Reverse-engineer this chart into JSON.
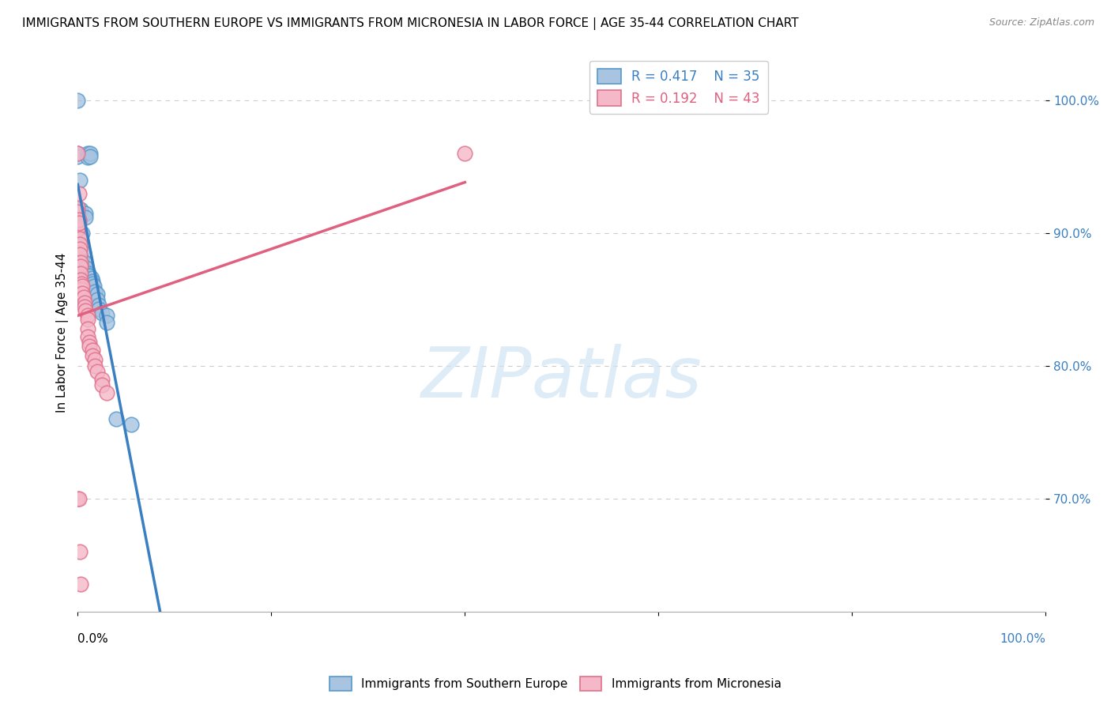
{
  "title": "IMMIGRANTS FROM SOUTHERN EUROPE VS IMMIGRANTS FROM MICRONESIA IN LABOR FORCE | AGE 35-44 CORRELATION CHART",
  "source": "Source: ZipAtlas.com",
  "ylabel": "In Labor Force | Age 35-44",
  "xlim": [
    0.0,
    1.0
  ],
  "ylim": [
    0.615,
    1.035
  ],
  "yticks": [
    0.7,
    0.8,
    0.9,
    1.0
  ],
  "ytick_labels": [
    "70.0%",
    "80.0%",
    "90.0%",
    "100.0%"
  ],
  "xtick_labels_left": "0.0%",
  "xtick_labels_right": "100.0%",
  "legend_blue_R": "R = 0.417",
  "legend_blue_N": "N = 35",
  "legend_pink_R": "R = 0.192",
  "legend_pink_N": "N = 43",
  "blue_fill": "#a8c4e0",
  "pink_fill": "#f4b8c8",
  "blue_edge": "#5599cc",
  "pink_edge": "#e0708a",
  "blue_line": "#3a7fc1",
  "pink_line": "#e06080",
  "watermark_color": "#d0e4f4",
  "grid_color": "#cccccc",
  "background": "#ffffff",
  "title_fontsize": 11,
  "source_fontsize": 9,
  "tick_fontsize": 11,
  "legend_fontsize": 12,
  "ylabel_fontsize": 11,
  "blue_scatter": [
    [
      0.0,
      1.0
    ],
    [
      0.0,
      0.96
    ],
    [
      0.0,
      0.958
    ],
    [
      0.01,
      0.96
    ],
    [
      0.01,
      0.957
    ],
    [
      0.013,
      0.96
    ],
    [
      0.013,
      0.958
    ],
    [
      0.002,
      0.94
    ],
    [
      0.003,
      0.918
    ],
    [
      0.008,
      0.915
    ],
    [
      0.008,
      0.912
    ],
    [
      0.005,
      0.9
    ],
    [
      0.006,
      0.885
    ],
    [
      0.004,
      0.88
    ],
    [
      0.007,
      0.878
    ],
    [
      0.007,
      0.872
    ],
    [
      0.009,
      0.874
    ],
    [
      0.009,
      0.87
    ],
    [
      0.011,
      0.87
    ],
    [
      0.011,
      0.868
    ],
    [
      0.012,
      0.868
    ],
    [
      0.014,
      0.866
    ],
    [
      0.015,
      0.864
    ],
    [
      0.015,
      0.862
    ],
    [
      0.017,
      0.86
    ],
    [
      0.018,
      0.856
    ],
    [
      0.02,
      0.854
    ],
    [
      0.02,
      0.85
    ],
    [
      0.022,
      0.846
    ],
    [
      0.022,
      0.843
    ],
    [
      0.025,
      0.84
    ],
    [
      0.03,
      0.838
    ],
    [
      0.03,
      0.833
    ],
    [
      0.04,
      0.76
    ],
    [
      0.055,
      0.756
    ]
  ],
  "pink_scatter": [
    [
      0.0,
      0.96
    ],
    [
      0.0,
      0.92
    ],
    [
      0.0,
      0.916
    ],
    [
      0.0,
      0.905
    ],
    [
      0.0,
      0.903
    ],
    [
      0.001,
      0.93
    ],
    [
      0.001,
      0.91
    ],
    [
      0.001,
      0.908
    ],
    [
      0.002,
      0.896
    ],
    [
      0.002,
      0.892
    ],
    [
      0.002,
      0.888
    ],
    [
      0.002,
      0.884
    ],
    [
      0.003,
      0.878
    ],
    [
      0.003,
      0.875
    ],
    [
      0.003,
      0.87
    ],
    [
      0.003,
      0.865
    ],
    [
      0.004,
      0.862
    ],
    [
      0.004,
      0.858
    ],
    [
      0.005,
      0.86
    ],
    [
      0.005,
      0.855
    ],
    [
      0.006,
      0.852
    ],
    [
      0.007,
      0.848
    ],
    [
      0.007,
      0.845
    ],
    [
      0.008,
      0.842
    ],
    [
      0.01,
      0.838
    ],
    [
      0.01,
      0.835
    ],
    [
      0.01,
      0.828
    ],
    [
      0.01,
      0.822
    ],
    [
      0.012,
      0.818
    ],
    [
      0.012,
      0.815
    ],
    [
      0.015,
      0.812
    ],
    [
      0.015,
      0.808
    ],
    [
      0.018,
      0.805
    ],
    [
      0.018,
      0.8
    ],
    [
      0.02,
      0.796
    ],
    [
      0.025,
      0.79
    ],
    [
      0.025,
      0.786
    ],
    [
      0.03,
      0.78
    ],
    [
      0.0,
      0.7
    ],
    [
      0.001,
      0.7
    ],
    [
      0.002,
      0.66
    ],
    [
      0.003,
      0.636
    ],
    [
      0.4,
      0.96
    ]
  ]
}
